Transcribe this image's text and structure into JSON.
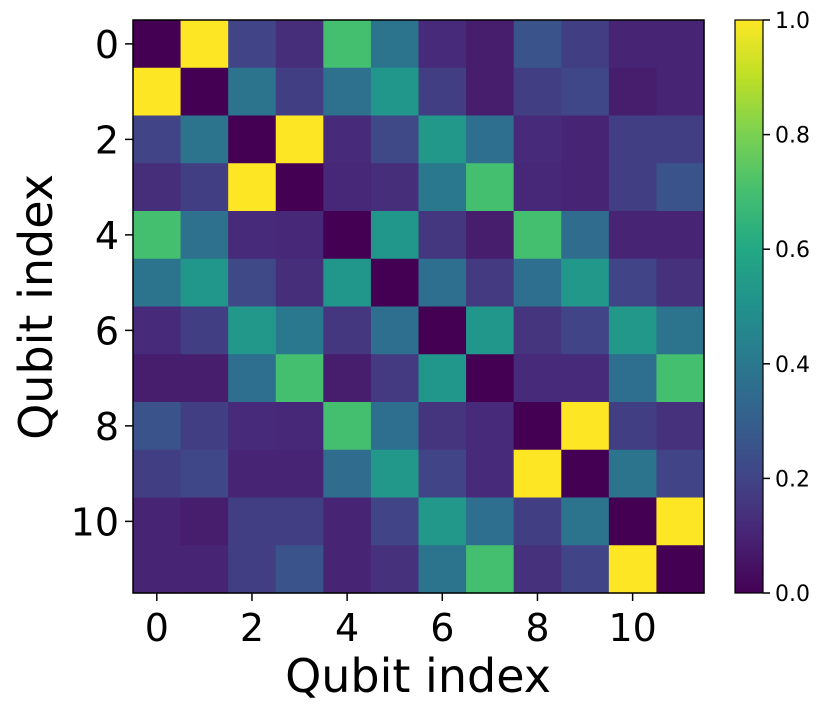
{
  "chart_data": {
    "type": "heatmap",
    "title": "",
    "xlabel": "Qubit index",
    "ylabel": "Qubit index",
    "x_ticks": [
      "0",
      "2",
      "4",
      "6",
      "8",
      "10"
    ],
    "y_ticks": [
      "0",
      "2",
      "4",
      "6",
      "8",
      "10"
    ],
    "colorbar_ticks": [
      "0.0",
      "0.2",
      "0.4",
      "0.6",
      "0.8",
      "1.0"
    ],
    "colormap": "viridis",
    "vmin": 0.0,
    "vmax": 1.0,
    "matrix": [
      [
        0.0,
        1.0,
        0.2,
        0.13,
        0.7,
        0.38,
        0.12,
        0.08,
        0.26,
        0.18,
        0.1,
        0.1
      ],
      [
        1.0,
        0.0,
        0.38,
        0.18,
        0.37,
        0.52,
        0.18,
        0.08,
        0.18,
        0.21,
        0.08,
        0.1
      ],
      [
        0.2,
        0.38,
        0.0,
        1.0,
        0.12,
        0.22,
        0.53,
        0.36,
        0.12,
        0.1,
        0.18,
        0.18
      ],
      [
        0.13,
        0.18,
        1.0,
        0.0,
        0.11,
        0.13,
        0.4,
        0.7,
        0.11,
        0.1,
        0.18,
        0.26
      ],
      [
        0.7,
        0.37,
        0.12,
        0.11,
        0.0,
        0.52,
        0.16,
        0.08,
        0.7,
        0.35,
        0.1,
        0.1
      ],
      [
        0.38,
        0.52,
        0.22,
        0.13,
        0.52,
        0.0,
        0.36,
        0.17,
        0.36,
        0.53,
        0.2,
        0.14
      ],
      [
        0.12,
        0.18,
        0.53,
        0.4,
        0.16,
        0.36,
        0.0,
        0.52,
        0.15,
        0.2,
        0.53,
        0.38
      ],
      [
        0.08,
        0.08,
        0.36,
        0.7,
        0.08,
        0.17,
        0.52,
        0.0,
        0.12,
        0.12,
        0.36,
        0.7
      ],
      [
        0.26,
        0.18,
        0.12,
        0.11,
        0.7,
        0.36,
        0.15,
        0.12,
        0.0,
        1.0,
        0.18,
        0.14
      ],
      [
        0.18,
        0.21,
        0.1,
        0.1,
        0.35,
        0.53,
        0.2,
        0.12,
        1.0,
        0.0,
        0.38,
        0.2
      ],
      [
        0.1,
        0.08,
        0.18,
        0.18,
        0.1,
        0.2,
        0.53,
        0.36,
        0.18,
        0.38,
        0.0,
        1.0
      ],
      [
        0.1,
        0.1,
        0.18,
        0.26,
        0.1,
        0.14,
        0.38,
        0.7,
        0.14,
        0.2,
        1.0,
        0.0
      ]
    ]
  }
}
